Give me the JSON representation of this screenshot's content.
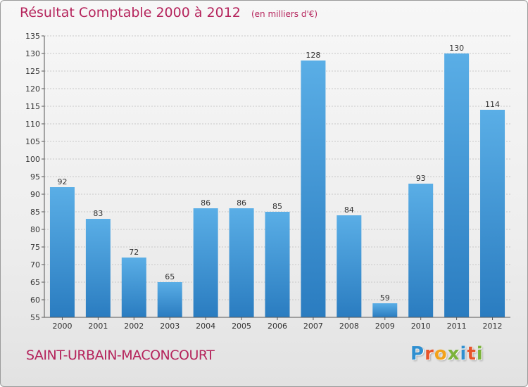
{
  "header": {
    "title": "Résultat Comptable 2000 à 2012",
    "subtitle": "(en milliers d'€)"
  },
  "footer": {
    "town": "SAINT-URBAIN-MACONCOURT",
    "brand": "Proxiti",
    "brand_letters": [
      {
        "char": "P",
        "color": "#2f8fd0"
      },
      {
        "char": "r",
        "color": "#e8542a"
      },
      {
        "char": "o",
        "color": "#f2a21b"
      },
      {
        "char": "x",
        "color": "#7bb33a"
      },
      {
        "char": "i",
        "color": "#2f8fd0"
      },
      {
        "char": "t",
        "color": "#e8542a"
      },
      {
        "char": "i",
        "color": "#7bb33a"
      }
    ]
  },
  "colors": {
    "title": "#b5245c",
    "bar_top": "#5aaee6",
    "bar_bottom": "#2a7cc0",
    "grid": "#c8c8c8",
    "axis": "#555555"
  },
  "chart_data": {
    "type": "bar",
    "title": "Résultat Comptable 2000 à 2012",
    "subtitle": "(en milliers d'€)",
    "xlabel": "",
    "ylabel": "",
    "categories": [
      "2000",
      "2001",
      "2002",
      "2003",
      "2004",
      "2005",
      "2006",
      "2007",
      "2008",
      "2009",
      "2010",
      "2011",
      "2012"
    ],
    "values": [
      92,
      83,
      72,
      65,
      86,
      86,
      85,
      128,
      84,
      59,
      93,
      130,
      114
    ],
    "ylim": [
      55,
      135
    ],
    "yticks": [
      55,
      60,
      65,
      70,
      75,
      80,
      85,
      90,
      95,
      100,
      105,
      110,
      115,
      120,
      125,
      130,
      135
    ],
    "grid": true,
    "data_labels": true
  }
}
